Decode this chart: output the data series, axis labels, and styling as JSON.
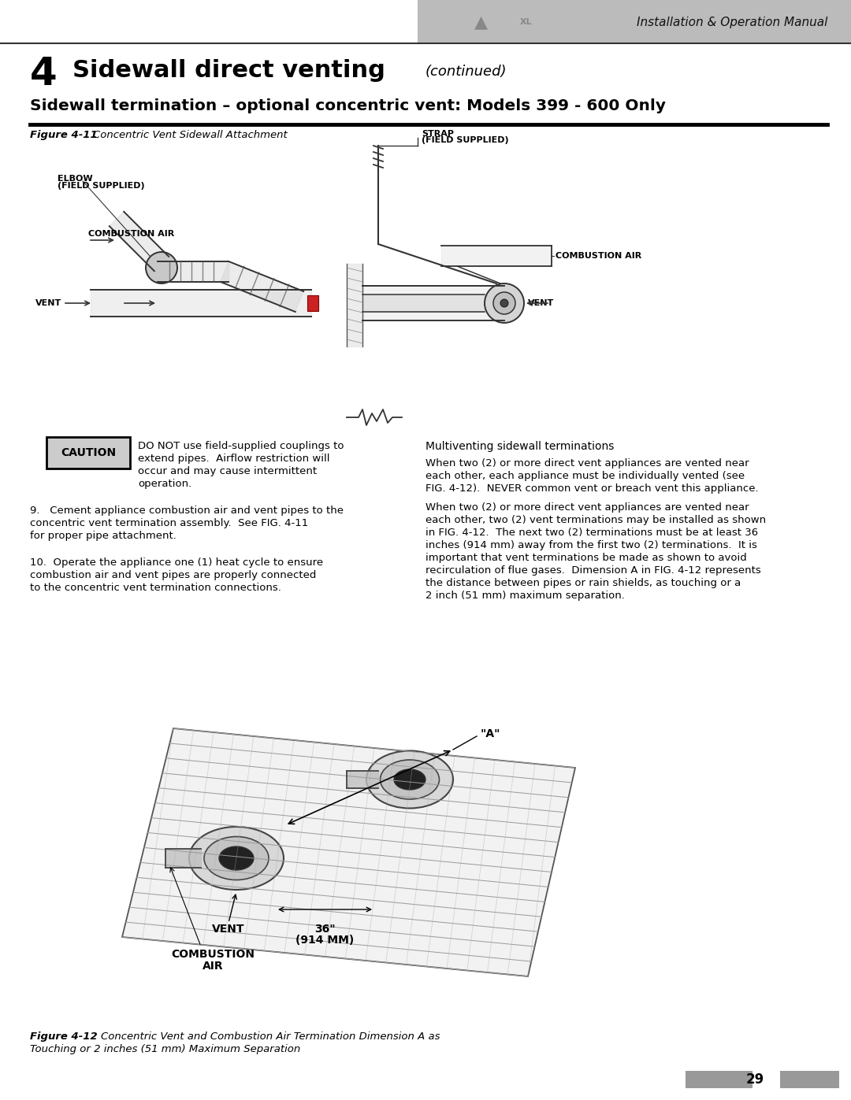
{
  "page_bg": "#ffffff",
  "header_bg": "#bbbbbb",
  "header_text": "Installation & Operation Manual",
  "chapter_num": "4",
  "chapter_title": "Sidewall direct venting",
  "chapter_subtitle": "(continued)",
  "section_title": "Sidewall termination – optional concentric vent: Models 399 - 600 Only",
  "fig411_label": "Figure 4-11",
  "fig411_caption": "Concentric Vent Sidewall Attachment",
  "caution_box_text": "CAUTION",
  "caution_line1": "DO NOT use field-supplied couplings to",
  "caution_line2": "extend pipes.  Airflow restriction will",
  "caution_line3": "occur and may cause intermittent",
  "caution_line4": "operation.",
  "multiventing_title": "Multiventing sidewall terminations",
  "multi_p1_line1": "When two (2) or more direct vent appliances are vented near",
  "multi_p1_line2": "each other, each appliance must be individually vented (see",
  "multi_p1_line3": "FIG. 4-12).  NEVER common vent or breach vent this appliance.",
  "multi_p2_line1": "When two (2) or more direct vent appliances are vented near",
  "multi_p2_line2": "each other, two (2) vent terminations may be installed as shown",
  "multi_p2_line3": "in FIG. 4-12.  The next two (2) terminations must be at least 36",
  "multi_p2_line4": "inches (914 mm) away from the first two (2) terminations.  It is",
  "multi_p2_line5": "important that vent terminations be made as shown to avoid",
  "multi_p2_line6": "recirculation of flue gases.  Dimension A in FIG. 4-12 represents",
  "multi_p2_line7": "the distance between pipes or rain shields, as touching or a",
  "multi_p2_line8": "2 inch (51 mm) maximum separation.",
  "step9_line1": "9.   Cement appliance combustion air and vent pipes to the",
  "step9_line2": "concentric vent termination assembly.  See FIG. 4-11",
  "step9_line3": "for proper pipe attachment.",
  "step10_line1": "10.  Operate the appliance one (1) heat cycle to ensure",
  "step10_line2": "combustion air and vent pipes are properly connected",
  "step10_line3": "to the concentric vent termination connections.",
  "fig412_label": "Figure 4-12",
  "fig412_caption": "Concentric Vent and Combustion Air Termination Dimension A as",
  "fig412_caption2": "Touching or 2 inches (51 mm) Maximum Separation",
  "page_num": "29",
  "label_strap": "STRAP",
  "label_strap2": "(FIELD SUPPLIED)",
  "label_elbow": "ELBOW",
  "label_elbow2": "(FIELD SUPPLIED)",
  "label_comb_air_left": "COMBUSTION AIR",
  "label_comb_air_right": "COMBUSTION AIR",
  "label_vent_left": "VENT",
  "label_vent_right": "VENT",
  "label_a": "\"A\"",
  "label_36": "36\"",
  "label_914": "(914 MM)",
  "label_vent412": "VENT",
  "label_comb_air412": "COMBUSTION",
  "label_comb_air412b": "AIR"
}
